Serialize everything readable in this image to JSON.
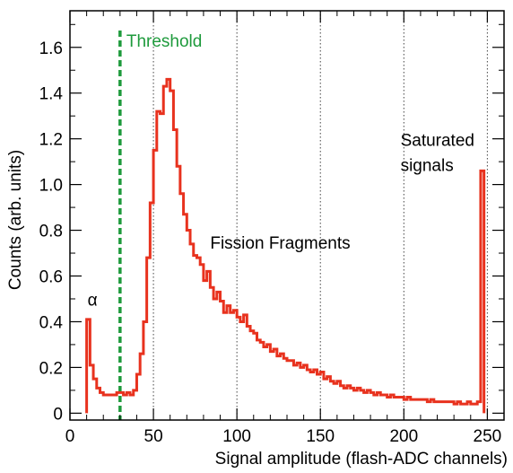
{
  "chart_data": {
    "type": "line",
    "render_style": "step-histogram",
    "xlabel": "Signal amplitude (flash-ADC channels)",
    "ylabel": "Counts (arb. units)",
    "xlim": [
      0,
      260
    ],
    "ylim": [
      -0.03,
      1.76
    ],
    "x_ticks": [
      0,
      50,
      100,
      150,
      200,
      250
    ],
    "y_ticks": [
      0,
      0.2,
      0.4,
      0.6,
      0.8,
      1.0,
      1.2,
      1.4,
      1.6
    ],
    "x_tick_labels": [
      "0",
      "50",
      "100",
      "150",
      "200",
      "250"
    ],
    "y_tick_labels": [
      "0",
      "0.2",
      "0.4",
      "0.6",
      "0.8",
      "1.0",
      "1.2",
      "1.4",
      "1.6"
    ],
    "grid": {
      "x": true,
      "y": false,
      "style": "dotted",
      "x_positions": [
        50,
        100,
        150,
        200,
        250
      ]
    },
    "bin_width": 2,
    "series": [
      {
        "color": "#e8321e",
        "x": [
          10,
          12,
          14,
          16,
          18,
          20,
          22,
          24,
          26,
          28,
          30,
          32,
          34,
          36,
          38,
          40,
          42,
          44,
          46,
          48,
          50,
          52,
          54,
          56,
          58,
          60,
          62,
          64,
          66,
          68,
          70,
          72,
          74,
          76,
          78,
          80,
          82,
          84,
          86,
          88,
          90,
          92,
          94,
          96,
          98,
          100,
          102,
          104,
          106,
          108,
          110,
          112,
          114,
          116,
          118,
          120,
          122,
          124,
          126,
          128,
          130,
          132,
          134,
          136,
          138,
          140,
          142,
          144,
          146,
          148,
          150,
          152,
          154,
          156,
          158,
          160,
          162,
          164,
          166,
          168,
          170,
          172,
          174,
          176,
          178,
          180,
          182,
          184,
          186,
          188,
          190,
          192,
          194,
          196,
          198,
          200,
          202,
          204,
          206,
          208,
          210,
          212,
          214,
          216,
          218,
          220,
          222,
          224,
          226,
          228,
          230,
          232,
          234,
          236,
          238,
          240,
          242,
          244,
          246
        ],
        "values": [
          0.41,
          0.21,
          0.15,
          0.11,
          0.09,
          0.08,
          0.08,
          0.08,
          0.08,
          0.09,
          0.09,
          0.08,
          0.09,
          0.08,
          0.1,
          0.17,
          0.26,
          0.4,
          0.68,
          0.92,
          1.15,
          1.32,
          1.31,
          1.43,
          1.46,
          1.41,
          1.24,
          1.08,
          0.96,
          0.87,
          0.8,
          0.74,
          0.69,
          0.68,
          0.65,
          0.58,
          0.62,
          0.55,
          0.5,
          0.53,
          0.49,
          0.44,
          0.47,
          0.44,
          0.45,
          0.42,
          0.4,
          0.43,
          0.38,
          0.36,
          0.35,
          0.32,
          0.31,
          0.29,
          0.3,
          0.27,
          0.28,
          0.25,
          0.26,
          0.24,
          0.23,
          0.23,
          0.21,
          0.22,
          0.2,
          0.21,
          0.19,
          0.18,
          0.19,
          0.17,
          0.18,
          0.15,
          0.16,
          0.14,
          0.13,
          0.14,
          0.12,
          0.11,
          0.12,
          0.11,
          0.1,
          0.11,
          0.1,
          0.09,
          0.1,
          0.09,
          0.08,
          0.09,
          0.08,
          0.08,
          0.07,
          0.08,
          0.07,
          0.07,
          0.07,
          0.06,
          0.07,
          0.06,
          0.06,
          0.06,
          0.06,
          0.06,
          0.05,
          0.06,
          0.05,
          0.05,
          0.05,
          0.05,
          0.05,
          0.05,
          0.04,
          0.05,
          0.04,
          0.04,
          0.05,
          0.04,
          0.04,
          0.05,
          1.06
        ]
      }
    ],
    "threshold": {
      "x": 30,
      "label": "Threshold",
      "color": "#1e9a3c"
    },
    "annotations": [
      {
        "text": "α",
        "x": 13.5,
        "y": 0.47
      },
      {
        "text": "Fission Fragments",
        "x": 84,
        "y": 0.72
      },
      {
        "text": "Saturated",
        "x": 198,
        "y": 1.17
      },
      {
        "text": "signals",
        "x": 198,
        "y": 1.06
      }
    ]
  }
}
